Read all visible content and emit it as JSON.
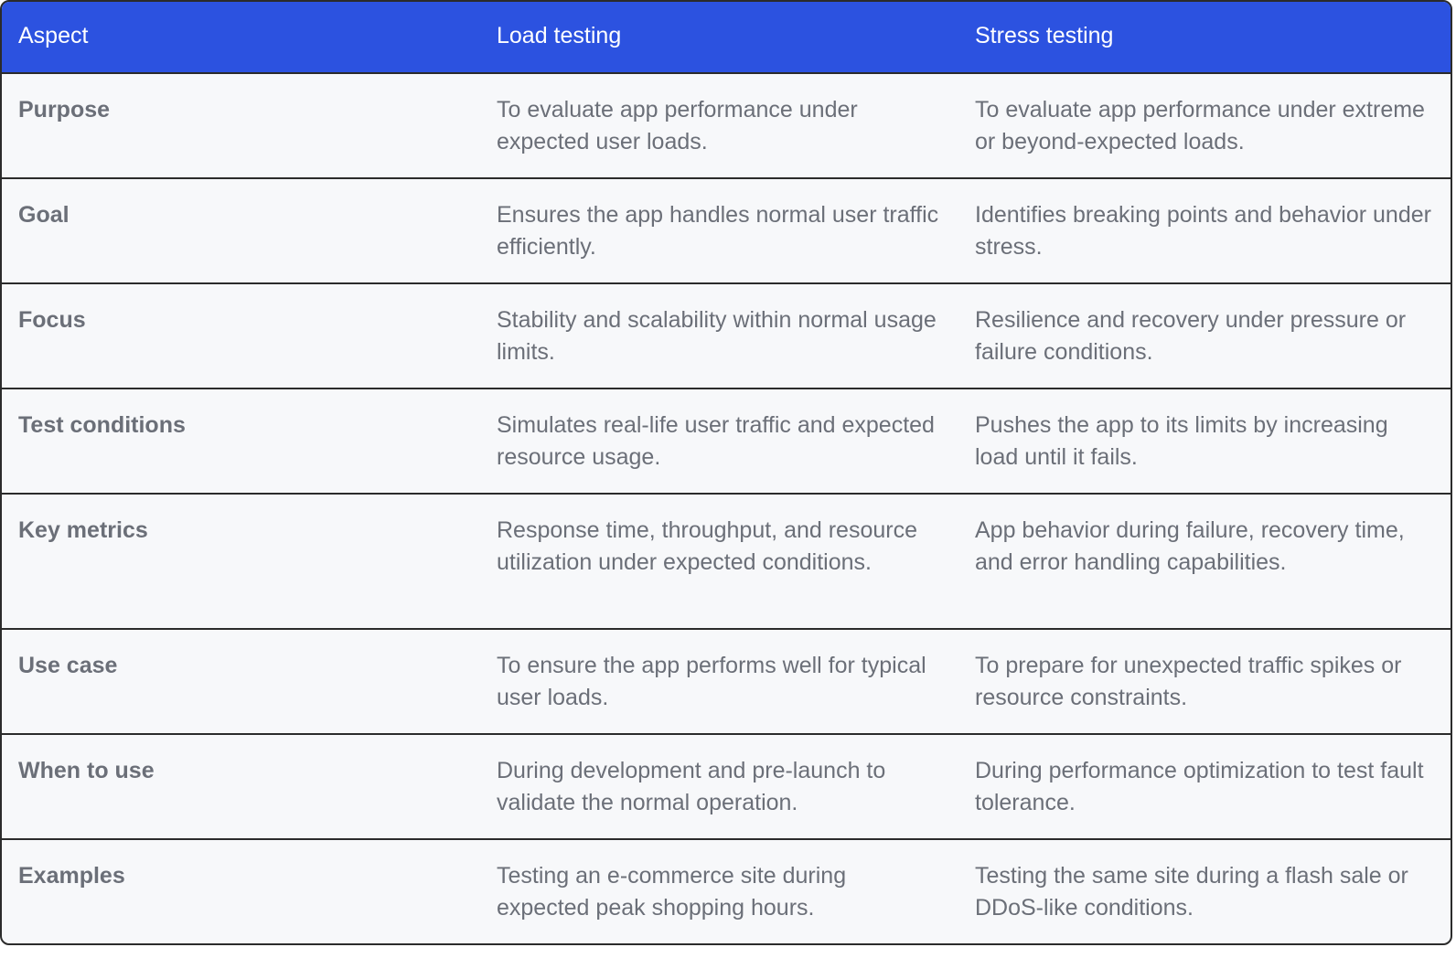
{
  "table": {
    "headers": [
      "Aspect",
      "Load testing",
      "Stress testing"
    ],
    "rows": [
      {
        "aspect": "Purpose",
        "load": "To evaluate app performance under expected user loads.",
        "stress": "To evaluate app performance under extreme or beyond-expected loads."
      },
      {
        "aspect": "Goal",
        "load": "Ensures the app handles normal user traffic efficiently.",
        "stress": "Identifies breaking points and behavior under stress."
      },
      {
        "aspect": "Focus",
        "load": "Stability and scalability within normal usage limits.",
        "stress": "Resilience and recovery under pressure or failure conditions."
      },
      {
        "aspect": "Test conditions",
        "load": "Simulates real-life user traffic and expected resource usage.",
        "stress": "Pushes the app to its limits by increasing load until it fails."
      },
      {
        "aspect": "Key metrics",
        "load": "Response time, throughput, and resource utilization under expected conditions.",
        "stress": "App behavior during failure, recovery time, and error handling capabilities."
      },
      {
        "aspect": "Use case",
        "load": "To ensure the app performs well for typical user loads.",
        "stress": "To prepare for unexpected traffic spikes or resource constraints."
      },
      {
        "aspect": "When to use",
        "load": "During development and pre-launch to validate the normal operation.",
        "stress": "During performance optimization to test fault tolerance."
      },
      {
        "aspect": "Examples",
        "load": "Testing an e-commerce site during expected peak shopping hours.",
        "stress": "Testing the same site during a flash sale or DDoS-like conditions."
      }
    ]
  },
  "colors": {
    "header_bg": "#2c52e0",
    "header_text": "#ffffff",
    "body_bg": "#f7f8fa",
    "body_text": "#6b6f78",
    "border": "#2b2b2b"
  }
}
